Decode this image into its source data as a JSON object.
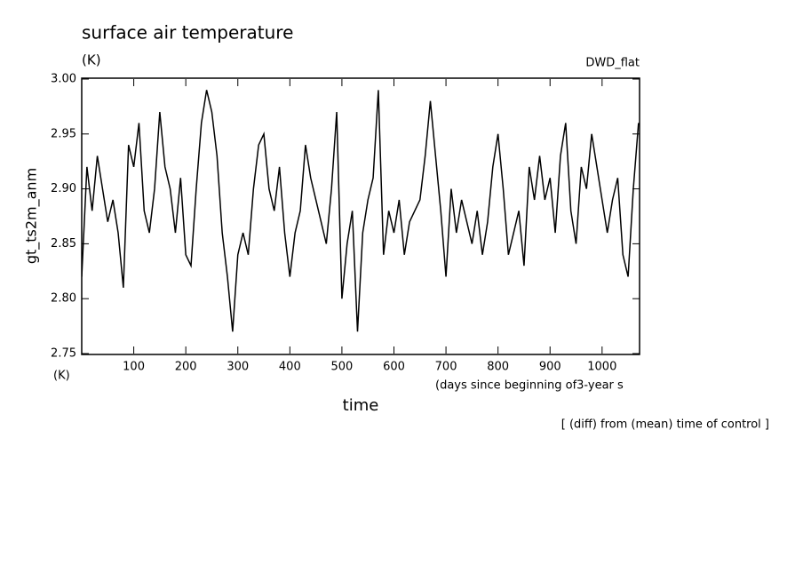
{
  "chart_data": {
    "type": "line",
    "title": "surface air temperature",
    "subtitle": "(K)",
    "experiment": "DWD_flat",
    "y_label": "gt_ts2m_anm",
    "y_unit": "(K)",
    "x_label": "time",
    "x_unit": "(days since beginning of3-year s",
    "note": "[ (diff) from (mean) time of control ]",
    "xlim": [
      0,
      1072
    ],
    "ylim": [
      2.75,
      3.0
    ],
    "xticks": [
      100,
      200,
      300,
      400,
      500,
      600,
      700,
      800,
      900,
      1000
    ],
    "yticks": [
      2.75,
      {
        "value": 2.8,
        "label": "2.80"
      },
      2.85,
      {
        "value": 2.9,
        "label": "2.90"
      },
      2.95,
      {
        "value": 3.0,
        "label": "3.00"
      }
    ],
    "series": [
      {
        "color": "#000000",
        "x": [
          0,
          10,
          20,
          30,
          40,
          50,
          60,
          70,
          80,
          90,
          100,
          110,
          120,
          130,
          140,
          150,
          160,
          170,
          180,
          190,
          200,
          210,
          220,
          230,
          240,
          250,
          260,
          270,
          280,
          290,
          300,
          310,
          320,
          330,
          340,
          350,
          360,
          370,
          380,
          390,
          400,
          410,
          420,
          430,
          440,
          450,
          460,
          470,
          480,
          490,
          500,
          510,
          520,
          530,
          540,
          550,
          560,
          570,
          580,
          590,
          600,
          610,
          620,
          630,
          640,
          650,
          660,
          670,
          680,
          690,
          700,
          710,
          720,
          730,
          740,
          750,
          760,
          770,
          780,
          790,
          800,
          810,
          820,
          830,
          840,
          850,
          860,
          870,
          880,
          890,
          900,
          910,
          920,
          930,
          940,
          950,
          960,
          970,
          980,
          990,
          1000,
          1010,
          1020,
          1030,
          1040,
          1050,
          1060,
          1070
        ],
        "values": [
          2.82,
          2.92,
          2.88,
          2.93,
          2.9,
          2.87,
          2.89,
          2.86,
          2.81,
          2.94,
          2.92,
          2.96,
          2.88,
          2.86,
          2.9,
          2.97,
          2.92,
          2.9,
          2.86,
          2.91,
          2.84,
          2.83,
          2.9,
          2.96,
          2.99,
          2.97,
          2.93,
          2.86,
          2.82,
          2.77,
          2.84,
          2.86,
          2.84,
          2.9,
          2.94,
          2.95,
          2.9,
          2.88,
          2.92,
          2.86,
          2.82,
          2.86,
          2.88,
          2.94,
          2.91,
          2.89,
          2.87,
          2.85,
          2.9,
          2.97,
          2.8,
          2.85,
          2.88,
          2.77,
          2.86,
          2.89,
          2.91,
          2.99,
          2.84,
          2.88,
          2.86,
          2.89,
          2.84,
          2.87,
          2.88,
          2.89,
          2.93,
          2.98,
          2.93,
          2.88,
          2.82,
          2.9,
          2.86,
          2.89,
          2.87,
          2.85,
          2.88,
          2.84,
          2.87,
          2.92,
          2.95,
          2.9,
          2.84,
          2.86,
          2.88,
          2.83,
          2.92,
          2.89,
          2.93,
          2.89,
          2.91,
          2.86,
          2.93,
          2.96,
          2.88,
          2.85,
          2.92,
          2.9,
          2.95,
          2.92,
          2.89,
          2.86,
          2.89,
          2.91,
          2.84,
          2.82,
          2.9,
          2.96
        ]
      }
    ]
  }
}
